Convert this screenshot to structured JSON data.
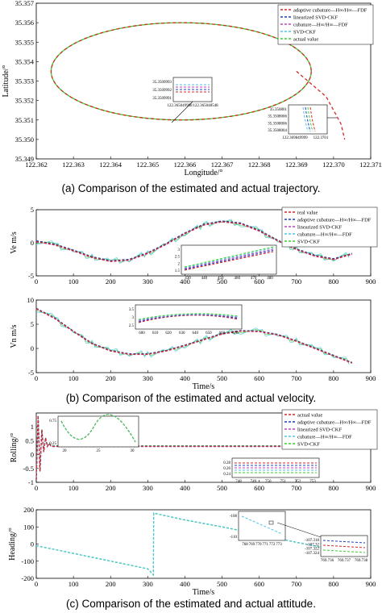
{
  "colors": {
    "actual": "#d62728",
    "adaptive": "#1f3fbf",
    "linearized": "#c040c0",
    "cubature": "#4fc3e8",
    "svd": "#39d12f"
  },
  "captions": {
    "a": "(a)    Comparison of the estimated and actual trajectory.",
    "b": "(b)    Comparison of the estimated and actual velocity.",
    "c": "(c)   Comparison of the estimated and actual attitude."
  },
  "chart_data": [
    {
      "id": "trajectory",
      "type": "line",
      "xlabel": "Longitude/°",
      "ylabel": "Latitude/°",
      "xlim": [
        122.362,
        122.371
      ],
      "ylim": [
        35.349,
        35.357
      ],
      "xticks": [
        "122.362",
        "122.363",
        "122.364",
        "122.365",
        "122.366",
        "122.367",
        "122.368",
        "122.369",
        "122.370",
        "122.371"
      ],
      "yticks": [
        "35.357",
        "35.356",
        "35.355",
        "35.354",
        "35.353",
        "35.352",
        "35.351",
        "35.350",
        "35.349"
      ],
      "legend": [
        "adaptive cubature—H∞/H∞—FDF",
        "linearized SVD-CKF",
        "cubature—H∞/H∞—FDF",
        "SVD-CKF",
        "actual value"
      ],
      "legend_position": "top-right",
      "ellipse": {
        "center": [
          122.3659,
          35.3535
        ],
        "rx": 0.0035,
        "ry": 0.0025
      },
      "exit_track": [
        [
          122.369,
          35.3535
        ],
        [
          122.3698,
          35.3522
        ],
        [
          122.3702,
          35.3508
        ],
        [
          122.3703,
          35.35
        ]
      ],
      "inset1": {
        "yticks": [
          "35.3509993",
          "35.3509992",
          "35.3509991"
        ],
        "xticks": [
          "122.365049998",
          "122.365048548"
        ]
      },
      "inset2": {
        "yticks": [
          "35.350801",
          "35.3508006",
          "35.3508006",
          "35.3508004"
        ],
        "xticks": [
          "122.369849999",
          "122.3701"
        ]
      }
    },
    {
      "id": "velocity-east",
      "type": "line",
      "ylabel": "Ve m/s",
      "xlim": [
        0,
        900
      ],
      "ylim": [
        -5,
        5
      ],
      "xticks": [
        "0",
        "100",
        "200",
        "300",
        "400",
        "500",
        "600",
        "700",
        "800",
        "900"
      ],
      "yticks": [
        "5",
        "0",
        "-5"
      ],
      "legend": [
        "real value",
        "adaptive cubature—H∞/H∞—FDF",
        "linearized SVD-CKF",
        "cubature—H∞/H∞—FDF",
        "SVD-CKF"
      ],
      "legend_position": "top-right",
      "x": [
        0,
        50,
        100,
        150,
        200,
        250,
        300,
        350,
        400,
        450,
        500,
        550,
        600,
        650,
        700,
        750,
        800,
        850
      ],
      "values": [
        0.2,
        -0.3,
        -1.2,
        -2.2,
        -2.8,
        -2.6,
        -1.6,
        -0.2,
        1.4,
        2.7,
        3.2,
        2.9,
        1.8,
        0.3,
        -1.0,
        -2.0,
        -2.5,
        -1.7
      ],
      "inset": {
        "yticks": [
          "3",
          "2.5",
          "2",
          "1.5"
        ],
        "xticks": [
          "430",
          "440",
          "450",
          "460",
          "470",
          "480"
        ]
      }
    },
    {
      "id": "velocity-north",
      "type": "line",
      "xlabel": "Time/s",
      "ylabel": "Vn m/s",
      "xlim": [
        0,
        900
      ],
      "ylim": [
        -5,
        10
      ],
      "xticks": [
        "0",
        "100",
        "200",
        "300",
        "400",
        "500",
        "600",
        "700",
        "800",
        "900"
      ],
      "yticks": [
        "10",
        "5",
        "0",
        "-5"
      ],
      "x": [
        0,
        50,
        100,
        150,
        200,
        250,
        300,
        350,
        400,
        450,
        500,
        550,
        600,
        650,
        700,
        750,
        800,
        850
      ],
      "values": [
        8.2,
        6.2,
        3.5,
        1.0,
        -0.5,
        -1.2,
        -1.2,
        -0.5,
        0.6,
        1.8,
        3.0,
        3.6,
        3.5,
        2.8,
        1.5,
        0.0,
        -1.5,
        -3.0
      ],
      "inset": {
        "yticks": [
          "3.5",
          "3",
          "2.5"
        ],
        "xticks": [
          "600",
          "610",
          "620",
          "630",
          "640",
          "650",
          "660",
          "670"
        ]
      }
    },
    {
      "id": "rolling",
      "type": "line",
      "ylabel": "Rolling/°",
      "xlim": [
        0,
        900
      ],
      "ylim": [
        -1,
        1.5
      ],
      "xticks": [
        "0",
        "100",
        "200",
        "300",
        "400",
        "500",
        "600",
        "700",
        "800",
        "900"
      ],
      "yticks": [
        "1",
        "0.5",
        "0",
        "-0.5",
        "-1"
      ],
      "legend": [
        "actual value",
        "adaptive cubature—H∞/H∞—FDF",
        "linearized SVD-CKF",
        "cubature—H∞/H∞—FDF",
        "SVD-CKF"
      ],
      "legend_position": "top-right",
      "x": [
        0,
        5,
        10,
        15,
        20,
        25,
        30,
        35,
        40,
        50,
        100,
        200,
        300,
        400,
        500,
        600,
        700,
        850
      ],
      "values": [
        -0.9,
        1.4,
        -0.6,
        0.9,
        0.1,
        0.6,
        0.3,
        0.4,
        0.3,
        0.3,
        0.3,
        0.3,
        0.3,
        0.3,
        0.3,
        0.3,
        0.3,
        0.3
      ],
      "inset1": {
        "yticks": [
          "0.75",
          "0.25"
        ],
        "xticks": [
          "20",
          "25",
          "30"
        ]
      },
      "inset2": {
        "yticks": [
          "0.28",
          "0.26",
          "0.24"
        ],
        "xticks": [
          "748",
          "749",
          "750",
          "751",
          "752",
          "753"
        ]
      }
    },
    {
      "id": "heading",
      "type": "line",
      "xlabel": "Time/s",
      "ylabel": "Heading/°",
      "xlim": [
        0,
        900
      ],
      "ylim": [
        -200,
        200
      ],
      "xticks": [
        "0",
        "100",
        "200",
        "300",
        "400",
        "500",
        "600",
        "700",
        "800",
        "900"
      ],
      "yticks": [
        "200",
        "100",
        "0",
        "-100",
        "-200"
      ],
      "x": [
        0,
        100,
        200,
        300,
        315,
        316,
        400,
        500,
        600,
        700,
        850
      ],
      "values": [
        -10,
        -55,
        -100,
        -145,
        -180,
        180,
        140,
        100,
        55,
        10,
        -55
      ],
      "inset1": {
        "yticks": [
          "-108",
          "-110"
        ],
        "xticks": [
          "768",
          "769",
          "770",
          "771",
          "772",
          "773"
        ]
      },
      "inset2": {
        "yticks": [
          "-107.318",
          "-107.32",
          "-107.322",
          "-107.324"
        ],
        "xticks": [
          "769.736",
          "769.737",
          "769.738"
        ]
      }
    }
  ]
}
